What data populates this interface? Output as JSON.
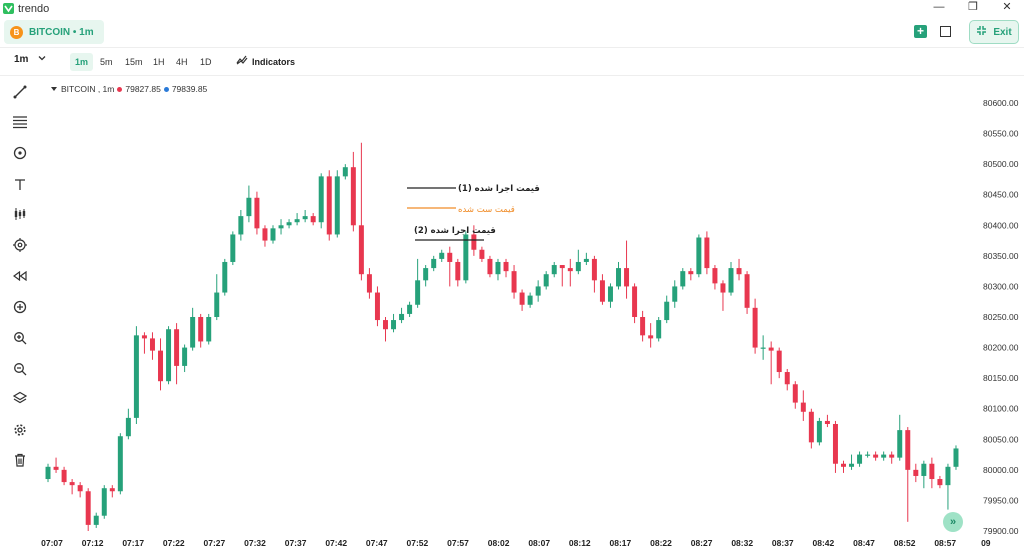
{
  "window": {
    "title": "trendo",
    "controls": [
      "—",
      "❐",
      "✕"
    ]
  },
  "symbol_tab": {
    "label": "BITCOIN • 1m",
    "coin": "B"
  },
  "header_actions": {
    "exit_label": "Exit"
  },
  "toolbar": {
    "interval_select": "1m",
    "timeframes": [
      "1m",
      "5m",
      "15m",
      "1H",
      "4H",
      "1D"
    ],
    "active_timeframe": "1m",
    "indicators_label": "Indicators"
  },
  "legend": {
    "symbol": "BITCOIN , 1m",
    "price_red": "79827.85",
    "price_blue": "79839.85"
  },
  "annotations": {
    "exec1": "قیمت اجرا شده (1)",
    "set": "قیمت ست شده",
    "exec2": "قیمت اجرا شده (2)"
  },
  "colors": {
    "up": "#26a17a",
    "down": "#e8374f",
    "accent": "#26a17a",
    "set_line": "#f08c28"
  },
  "chart_data": {
    "type": "candlestick",
    "y_ticks": [
      "80600.00",
      "80550.00",
      "80500.00",
      "80450.00",
      "80400.00",
      "80350.00",
      "80300.00",
      "80250.00",
      "80200.00",
      "80150.00",
      "80100.00",
      "80050.00",
      "80000.00",
      "79950.00",
      "79900.00"
    ],
    "ylim": [
      79900,
      80600
    ],
    "x_ticks": [
      "07:07",
      "07:12",
      "07:17",
      "07:22",
      "07:27",
      "07:32",
      "07:37",
      "07:42",
      "07:47",
      "07:52",
      "07:57",
      "08:02",
      "08:07",
      "08:12",
      "08:17",
      "08:22",
      "08:27",
      "08:32",
      "08:37",
      "08:42",
      "08:47",
      "08:52",
      "08:57",
      "09"
    ],
    "candles": [
      [
        79985,
        80005,
        79980,
        80010
      ],
      [
        80005,
        80000,
        79995,
        80020
      ],
      [
        80000,
        79980,
        79975,
        80005
      ],
      [
        79980,
        79975,
        79960,
        79985
      ],
      [
        79975,
        79965,
        79955,
        79980
      ],
      [
        79965,
        79910,
        79900,
        79970
      ],
      [
        79910,
        79925,
        79905,
        79930
      ],
      [
        79925,
        79970,
        79920,
        79975
      ],
      [
        79970,
        79965,
        79955,
        79975
      ],
      [
        79965,
        80055,
        79960,
        80060
      ],
      [
        80055,
        80085,
        80050,
        80100
      ],
      [
        80085,
        80220,
        80075,
        80235
      ],
      [
        80220,
        80215,
        80190,
        80225
      ],
      [
        80215,
        80195,
        80180,
        80225
      ],
      [
        80195,
        80145,
        80130,
        80215
      ],
      [
        80145,
        80230,
        80140,
        80235
      ],
      [
        80230,
        80170,
        80140,
        80240
      ],
      [
        80170,
        80200,
        80160,
        80205
      ],
      [
        80200,
        80250,
        80195,
        80265
      ],
      [
        80250,
        80210,
        80200,
        80255
      ],
      [
        80210,
        80250,
        80205,
        80255
      ],
      [
        80250,
        80290,
        80245,
        80320
      ],
      [
        80290,
        80340,
        80285,
        80345
      ],
      [
        80340,
        80385,
        80335,
        80390
      ],
      [
        80385,
        80415,
        80375,
        80425
      ],
      [
        80415,
        80445,
        80405,
        80465
      ],
      [
        80445,
        80395,
        80385,
        80455
      ],
      [
        80395,
        80375,
        80365,
        80400
      ],
      [
        80375,
        80395,
        80370,
        80400
      ],
      [
        80395,
        80400,
        80385,
        80410
      ],
      [
        80400,
        80405,
        80395,
        80410
      ],
      [
        80405,
        80410,
        80400,
        80420
      ],
      [
        80410,
        80415,
        80405,
        80425
      ],
      [
        80415,
        80405,
        80400,
        80420
      ],
      [
        80405,
        80480,
        80395,
        80485
      ],
      [
        80480,
        80385,
        80375,
        80490
      ],
      [
        80385,
        80480,
        80380,
        80490
      ],
      [
        80480,
        80495,
        80475,
        80500
      ],
      [
        80495,
        80400,
        80390,
        80520
      ],
      [
        80400,
        80320,
        80310,
        80535
      ],
      [
        80320,
        80290,
        80280,
        80330
      ],
      [
        80290,
        80245,
        80235,
        80300
      ],
      [
        80245,
        80230,
        80210,
        80250
      ],
      [
        80230,
        80245,
        80225,
        80255
      ],
      [
        80245,
        80255,
        80240,
        80265
      ],
      [
        80255,
        80270,
        80250,
        80275
      ],
      [
        80270,
        80310,
        80265,
        80345
      ],
      [
        80310,
        80330,
        80300,
        80335
      ],
      [
        80330,
        80345,
        80325,
        80350
      ],
      [
        80345,
        80355,
        80340,
        80360
      ],
      [
        80355,
        80340,
        80300,
        80365
      ],
      [
        80340,
        80310,
        80300,
        80345
      ],
      [
        80310,
        80385,
        80305,
        80390
      ],
      [
        80385,
        80360,
        80350,
        80400
      ],
      [
        80360,
        80345,
        80340,
        80365
      ],
      [
        80345,
        80320,
        80315,
        80350
      ],
      [
        80320,
        80340,
        80310,
        80345
      ],
      [
        80340,
        80325,
        80315,
        80345
      ],
      [
        80325,
        80290,
        80280,
        80335
      ],
      [
        80290,
        80270,
        80260,
        80295
      ],
      [
        80270,
        80285,
        80265,
        80290
      ],
      [
        80285,
        80300,
        80275,
        80310
      ],
      [
        80300,
        80320,
        80295,
        80325
      ],
      [
        80320,
        80335,
        80315,
        80340
      ],
      [
        80335,
        80330,
        80300,
        80335
      ],
      [
        80330,
        80325,
        80300,
        80345
      ],
      [
        80325,
        80340,
        80320,
        80360
      ],
      [
        80340,
        80345,
        80335,
        80355
      ],
      [
        80345,
        80310,
        80290,
        80350
      ],
      [
        80310,
        80275,
        80270,
        80320
      ],
      [
        80275,
        80300,
        80265,
        80305
      ],
      [
        80300,
        80330,
        80295,
        80340
      ],
      [
        80330,
        80300,
        80280,
        80375
      ],
      [
        80300,
        80250,
        80240,
        80305
      ],
      [
        80250,
        80220,
        80210,
        80260
      ],
      [
        80220,
        80215,
        80200,
        80240
      ],
      [
        80215,
        80245,
        80210,
        80250
      ],
      [
        80245,
        80275,
        80240,
        80285
      ],
      [
        80275,
        80300,
        80265,
        80310
      ],
      [
        80300,
        80325,
        80295,
        80330
      ],
      [
        80325,
        80320,
        80310,
        80330
      ],
      [
        80320,
        80380,
        80315,
        80385
      ],
      [
        80380,
        80330,
        80320,
        80390
      ],
      [
        80330,
        80305,
        80295,
        80335
      ],
      [
        80305,
        80290,
        80260,
        80310
      ],
      [
        80290,
        80330,
        80285,
        80340
      ],
      [
        80330,
        80320,
        80310,
        80345
      ],
      [
        80320,
        80265,
        80255,
        80325
      ],
      [
        80265,
        80200,
        80190,
        80280
      ],
      [
        80200,
        80200,
        80180,
        80220
      ],
      [
        80200,
        80195,
        80140,
        80210
      ],
      [
        80195,
        80160,
        80150,
        80200
      ],
      [
        80160,
        80140,
        80130,
        80165
      ],
      [
        80140,
        80110,
        80100,
        80145
      ],
      [
        80110,
        80095,
        80080,
        80130
      ],
      [
        80095,
        80045,
        80035,
        80100
      ],
      [
        80045,
        80080,
        80040,
        80085
      ],
      [
        80080,
        80075,
        80070,
        80090
      ],
      [
        80075,
        80010,
        79995,
        80080
      ],
      [
        80010,
        80005,
        79995,
        80015
      ],
      [
        80005,
        80010,
        80000,
        80025
      ],
      [
        80010,
        80025,
        80005,
        80030
      ],
      [
        80025,
        80025,
        80020,
        80030
      ],
      [
        80025,
        80020,
        80015,
        80030
      ],
      [
        80020,
        80025,
        80015,
        80030
      ],
      [
        80025,
        80020,
        80010,
        80030
      ],
      [
        80020,
        80065,
        80015,
        80090
      ],
      [
        80065,
        80000,
        79915,
        80070
      ],
      [
        80000,
        79990,
        79980,
        80010
      ],
      [
        79990,
        80010,
        79970,
        80015
      ],
      [
        80010,
        79985,
        79970,
        80020
      ],
      [
        79985,
        79975,
        79970,
        79990
      ],
      [
        79975,
        80005,
        79935,
        80010
      ],
      [
        80005,
        80035,
        80000,
        80040
      ]
    ]
  }
}
